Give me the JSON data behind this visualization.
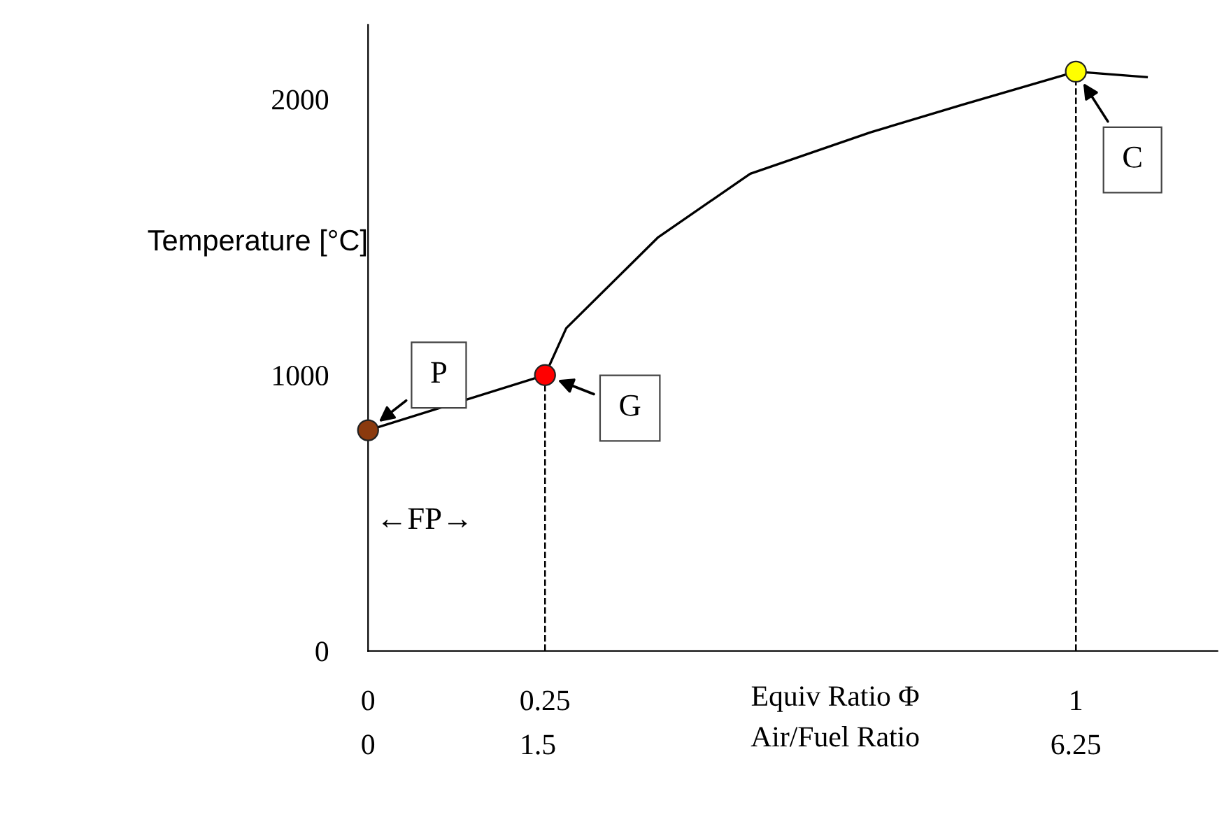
{
  "chart_data": {
    "type": "line",
    "ylabel": "Temperature [°C]",
    "xlabel": "Equiv Ratio Φ",
    "x2label": "Air/Fuel Ratio",
    "xlim": [
      0,
      1.2
    ],
    "xticks": [
      0,
      0.25,
      1
    ],
    "ylim": [
      0,
      2270
    ],
    "yticks": [
      0,
      1000,
      2000
    ],
    "x2lim": [
      0,
      7.5
    ],
    "x2ticks": [
      0,
      1.5,
      6.25
    ],
    "grid": false,
    "series": [
      {
        "color": "#000000",
        "x": [
          0,
          0.25,
          0.28,
          0.41,
          0.54,
          0.71,
          0.84,
          1,
          1.1
        ],
        "values": [
          800,
          1000,
          1170,
          1500,
          1730,
          1880,
          1980,
          2100,
          2080
        ]
      },
      {
        "type": "scatter",
        "x": [
          0,
          0.25,
          1
        ],
        "values": [
          800,
          1000,
          2100
        ],
        "colors": [
          "#8b3a0e",
          "#ff0000",
          "#ffff00"
        ],
        "marker": "circle"
      }
    ],
    "ref_lines": [
      {
        "axis": "x",
        "value": 0.25,
        "line_style": "dashed",
        "color": "#000000"
      },
      {
        "axis": "x",
        "value": 1,
        "line_style": "dashed",
        "color": "#000000"
      }
    ],
    "annotations": [
      {
        "text": "P",
        "x": 0,
        "y": 800
      },
      {
        "text": "G",
        "x": 0.25,
        "y": 1000
      },
      {
        "text": "C",
        "x": 1,
        "y": 2100
      },
      "←FP→"
    ]
  }
}
